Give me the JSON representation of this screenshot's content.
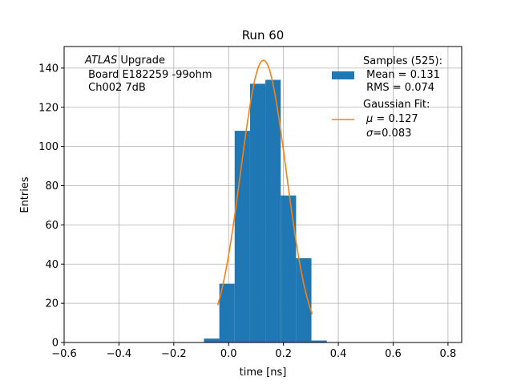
{
  "chart_data": {
    "type": "bar",
    "title": "Run 60",
    "xlabel": "time [ns]",
    "ylabel": "Entries",
    "xlim": [
      -0.6,
      0.85
    ],
    "ylim": [
      0,
      151
    ],
    "xticks": [
      -0.6,
      -0.4,
      -0.2,
      0.0,
      0.2,
      0.4,
      0.6,
      0.8
    ],
    "xtick_labels": [
      "−0.6",
      "−0.4",
      "−0.2",
      "0.0",
      "0.2",
      "0.4",
      "0.6",
      "0.8"
    ],
    "yticks": [
      0,
      20,
      40,
      60,
      80,
      100,
      120,
      140
    ],
    "ytick_labels": [
      "0",
      "20",
      "40",
      "60",
      "80",
      "100",
      "120",
      "140"
    ],
    "grid": true,
    "legend_position": "top-right",
    "histogram": {
      "bin_edges": [
        -0.09,
        -0.034,
        0.022,
        0.078,
        0.134,
        0.19,
        0.246,
        0.302,
        0.358
      ],
      "counts": [
        2,
        30,
        108,
        132,
        134,
        75,
        43,
        1
      ],
      "color": "#1f77b4"
    },
    "gaussian_fit": {
      "amplitude": 144,
      "mu": 0.127,
      "sigma": 0.083,
      "x_range": [
        -0.04,
        0.305
      ],
      "color": "#ff7f0e"
    },
    "annotation": {
      "italic": "ATLAS",
      "rest": " Upgrade",
      "line2": " Board E182259 -99ohm",
      "line3": " Ch002 7dB"
    },
    "legend": {
      "samples_title": "Samples (525):",
      "samples_mean": " Mean = 0.131",
      "samples_rms": " RMS = 0.074",
      "fit_title": "Gaussian Fit:",
      "fit_mu_symbol": "μ",
      "fit_mu_value": " = 0.127",
      "fit_sigma_symbol": "σ",
      "fit_sigma_value": "=0.083"
    }
  }
}
